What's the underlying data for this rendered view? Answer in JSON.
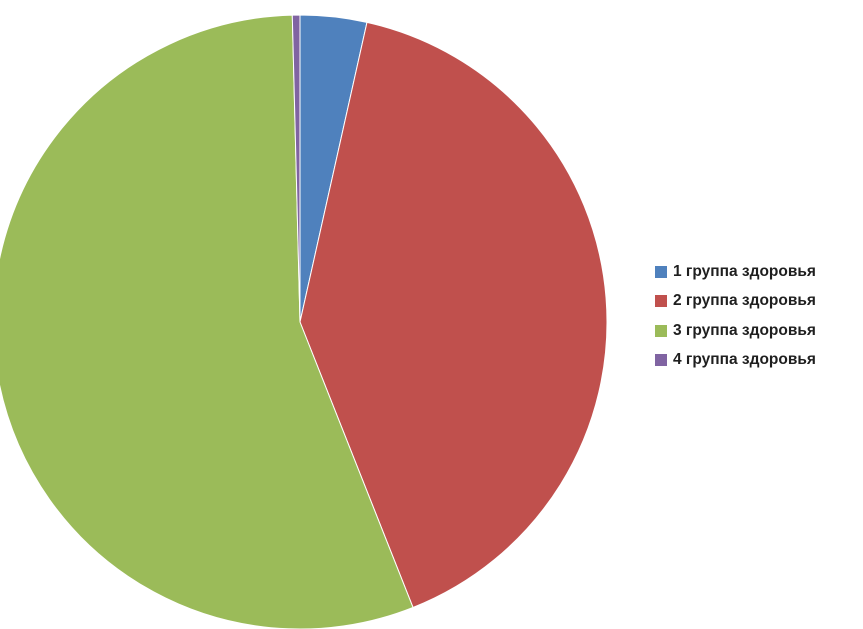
{
  "chart_data": {
    "type": "pie",
    "categories": [
      "1 группа здоровья",
      "2 группа здоровья",
      "3 группа здоровья",
      "4 группа здоровья"
    ],
    "values": [
      3.5,
      40.5,
      55.6,
      0.4
    ],
    "colors": [
      "#4F81BD",
      "#C0504D",
      "#9BBB59",
      "#8064A2"
    ],
    "start": "12 o'clock",
    "direction": "clockwise",
    "legend_position": "right"
  }
}
